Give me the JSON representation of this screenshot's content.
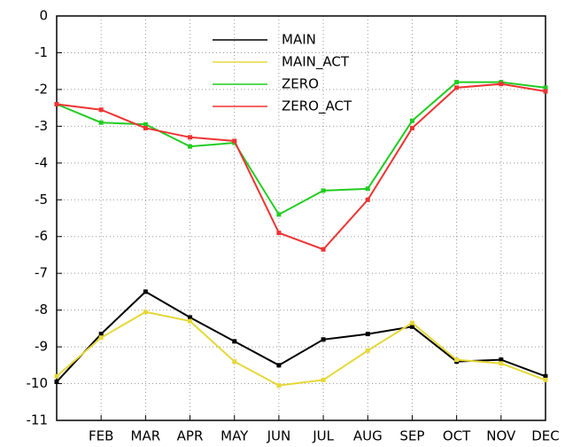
{
  "chart_data": {
    "type": "line",
    "categories": [
      null,
      "FEB",
      "MAR",
      "APR",
      "MAY",
      "JUN",
      "JUL",
      "AUG",
      "SEP",
      "OCT",
      "NOV",
      "DEC"
    ],
    "series": [
      {
        "name": "MAIN",
        "color": "#000000",
        "values": [
          -9.95,
          -8.65,
          -7.5,
          -8.2,
          -8.85,
          -9.5,
          -8.8,
          -8.65,
          -8.45,
          -9.4,
          -9.35,
          -9.8
        ]
      },
      {
        "name": "MAIN_ACT",
        "color": "#e6d83a",
        "values": [
          -9.8,
          -8.75,
          -8.05,
          -8.3,
          -9.4,
          -10.05,
          -9.9,
          -9.1,
          -8.35,
          -9.35,
          -9.45,
          -9.9
        ]
      },
      {
        "name": "ZERO",
        "color": "#22cc22",
        "values": [
          -2.4,
          -2.9,
          -2.95,
          -3.55,
          -3.45,
          -5.4,
          -4.75,
          -4.7,
          -2.85,
          -1.8,
          -1.8,
          -1.95
        ]
      },
      {
        "name": "ZERO_ACT",
        "color": "#ee3333",
        "values": [
          -2.4,
          -2.55,
          -3.05,
          -3.3,
          -3.4,
          -5.9,
          -6.35,
          -5.0,
          -3.05,
          -1.95,
          -1.85,
          -2.05
        ]
      }
    ],
    "ylim": [
      -11,
      0
    ],
    "yticks": [
      0,
      -1,
      -2,
      -3,
      -4,
      -5,
      -6,
      -7,
      -8,
      -9,
      -10,
      -11
    ],
    "grid": true
  }
}
